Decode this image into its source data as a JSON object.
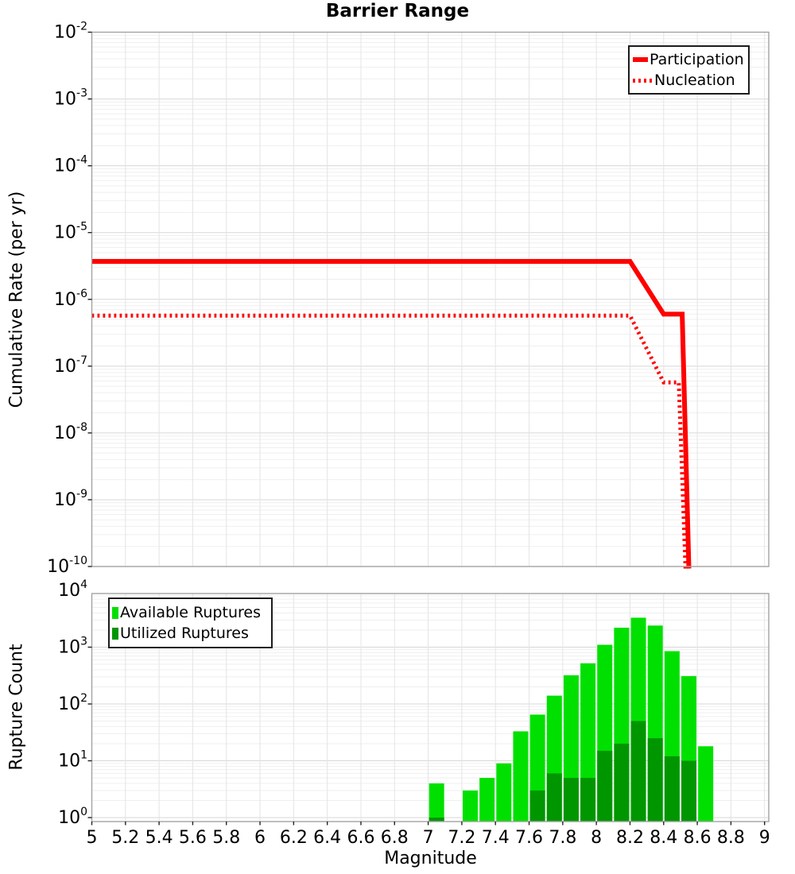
{
  "figure_title": "Barrier Range",
  "colors": {
    "participation": "#ff0000",
    "nucleation": "#ff0000",
    "available": "#00e000",
    "utilized": "#009600"
  },
  "chart_data": [
    {
      "type": "line",
      "panel": "top",
      "title": "Barrier Range",
      "ylabel": "Cumulative Rate (per yr)",
      "x_range": [
        5,
        9.025
      ],
      "y_range_log10": [
        -10,
        -2
      ],
      "yticks_exponents": [
        -2,
        -3,
        -4,
        -5,
        -6,
        -7,
        -8,
        -9,
        -10
      ],
      "grid": "log minor + major, light gray",
      "legend_position": "top-right",
      "series": [
        {
          "name": "Participation",
          "style": "solid",
          "color": "#ff0000",
          "points": [
            [
              5.0,
              3.7e-06
            ],
            [
              8.2,
              3.7e-06
            ],
            [
              8.4,
              6e-07
            ],
            [
              8.51,
              6e-07
            ],
            [
              8.55,
              0
            ]
          ]
        },
        {
          "name": "Nucleation",
          "style": "dotted",
          "color": "#ff0000",
          "points": [
            [
              5.0,
              5.7e-07
            ],
            [
              8.2,
              5.7e-07
            ],
            [
              8.4,
              5.7e-08
            ],
            [
              8.49,
              5.7e-08
            ],
            [
              8.53,
              0
            ]
          ]
        }
      ]
    },
    {
      "type": "bar",
      "panel": "bottom",
      "ylabel": "Rupture Count",
      "xlabel": "Magnitude",
      "x_range": [
        5,
        9.025
      ],
      "y_range_log10": [
        -0.07,
        3.94
      ],
      "yticks_exponents": [
        4,
        3,
        2,
        1,
        0
      ],
      "xtick_labels": [
        "5",
        "5.2",
        "5.4",
        "5.6",
        "5.8",
        "6",
        "6.2",
        "6.4",
        "6.6",
        "6.8",
        "7",
        "7.2",
        "7.4",
        "7.6",
        "7.8",
        "8",
        "8.2",
        "8.4",
        "8.6",
        "8.8",
        "9"
      ],
      "xtick_start": 5,
      "xtick_step": 0.2,
      "bin_width": 0.1,
      "legend_position": "top-left",
      "categories": [
        7.05,
        7.25,
        7.35,
        7.45,
        7.55,
        7.65,
        7.75,
        7.85,
        7.95,
        8.05,
        8.15,
        8.25,
        8.35,
        8.45,
        8.55,
        8.65
      ],
      "series": [
        {
          "name": "Available Ruptures",
          "color": "#00e000",
          "values": [
            4,
            3,
            5,
            9,
            33,
            65,
            140,
            320,
            520,
            1100,
            2200,
            3300,
            2400,
            850,
            310,
            18
          ]
        },
        {
          "name": "Utilized Ruptures",
          "color": "#009600",
          "values": [
            1,
            0,
            0,
            0,
            0,
            3,
            6,
            5,
            5,
            15,
            20,
            50,
            25,
            12,
            10,
            0
          ]
        }
      ]
    }
  ]
}
